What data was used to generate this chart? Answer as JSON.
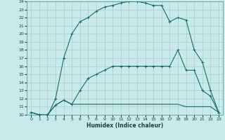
{
  "xlabel": "Humidex (Indice chaleur)",
  "bg_color": "#c8eaea",
  "grid_color": "#a8cccc",
  "line_color": "#1a6b6b",
  "xlim": [
    -0.5,
    23.5
  ],
  "ylim": [
    10,
    24
  ],
  "xticks": [
    0,
    1,
    2,
    3,
    4,
    5,
    6,
    7,
    8,
    9,
    10,
    11,
    12,
    13,
    14,
    15,
    16,
    17,
    18,
    19,
    20,
    21,
    22,
    23
  ],
  "yticks": [
    10,
    11,
    12,
    13,
    14,
    15,
    16,
    17,
    18,
    19,
    20,
    21,
    22,
    23,
    24
  ],
  "line1_x": [
    0,
    1,
    2,
    3,
    4,
    5,
    6,
    7,
    8,
    9,
    10,
    11,
    12,
    13,
    14,
    15,
    16,
    17,
    18,
    19,
    20,
    21,
    22,
    23
  ],
  "line1_y": [
    10.3,
    10.0,
    10.0,
    11.2,
    11.8,
    11.3,
    11.3,
    11.3,
    11.3,
    11.3,
    11.3,
    11.3,
    11.3,
    11.3,
    11.3,
    11.3,
    11.3,
    11.3,
    11.3,
    11.0,
    11.0,
    11.0,
    11.0,
    10.3
  ],
  "line2_x": [
    0,
    1,
    2,
    3,
    4,
    5,
    6,
    7,
    8,
    9,
    10,
    11,
    12,
    13,
    14,
    15,
    16,
    17,
    18,
    19,
    20,
    21,
    22,
    23
  ],
  "line2_y": [
    10.3,
    10.0,
    10.0,
    11.2,
    11.8,
    11.3,
    13.0,
    14.5,
    15.0,
    15.5,
    16.0,
    16.0,
    16.0,
    16.0,
    16.0,
    16.0,
    16.0,
    16.0,
    18.0,
    15.5,
    15.5,
    13.0,
    12.3,
    10.3
  ],
  "line3_x": [
    0,
    1,
    2,
    3,
    4,
    5,
    6,
    7,
    8,
    9,
    10,
    11,
    12,
    13,
    14,
    15,
    16,
    17,
    18,
    19,
    20,
    21,
    22,
    23
  ],
  "line3_y": [
    10.3,
    10.0,
    9.8,
    12.0,
    17.0,
    20.0,
    21.5,
    22.0,
    22.8,
    23.3,
    23.5,
    23.8,
    24.0,
    24.0,
    23.8,
    23.5,
    23.5,
    21.5,
    22.0,
    21.7,
    18.0,
    16.5,
    13.0,
    10.3
  ],
  "marker_size": 2.5,
  "line_width": 0.8,
  "tick_fontsize": 4.5,
  "xlabel_fontsize": 5.5
}
